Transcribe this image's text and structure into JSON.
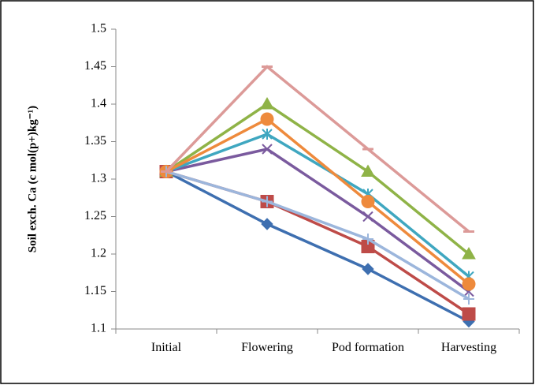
{
  "chart_data": {
    "type": "line",
    "y_label": "Soil exch. Ca (c mol(p+)kg⁻¹)",
    "categories": [
      "Initial",
      "Flowering",
      "Pod formation",
      "Harvesting"
    ],
    "ylim": [
      1.1,
      1.5
    ],
    "yticks": [
      1.1,
      1.15,
      1.2,
      1.25,
      1.3,
      1.35,
      1.4,
      1.45,
      1.5
    ],
    "series": [
      {
        "color": "#3e6fb0",
        "marker": "diamond",
        "values": [
          1.31,
          1.24,
          1.18,
          1.11
        ]
      },
      {
        "color": "#be4b48",
        "marker": "square",
        "values": [
          1.31,
          1.27,
          1.21,
          1.12
        ]
      },
      {
        "color": "#8fb347",
        "marker": "triangle",
        "values": [
          1.31,
          1.4,
          1.31,
          1.2
        ]
      },
      {
        "color": "#7a5a9e",
        "marker": "x",
        "values": [
          1.31,
          1.34,
          1.25,
          1.15
        ]
      },
      {
        "color": "#3fa7c0",
        "marker": "star",
        "values": [
          1.31,
          1.36,
          1.28,
          1.17
        ]
      },
      {
        "color": "#ee8a3c",
        "marker": "circle",
        "values": [
          1.31,
          1.38,
          1.27,
          1.16
        ]
      },
      {
        "color": "#9cb6dc",
        "marker": "plus",
        "values": [
          1.31,
          1.27,
          1.22,
          1.14
        ]
      },
      {
        "color": "#dc9a98",
        "marker": "dash",
        "values": [
          1.31,
          1.45,
          1.34,
          1.23
        ]
      }
    ]
  }
}
